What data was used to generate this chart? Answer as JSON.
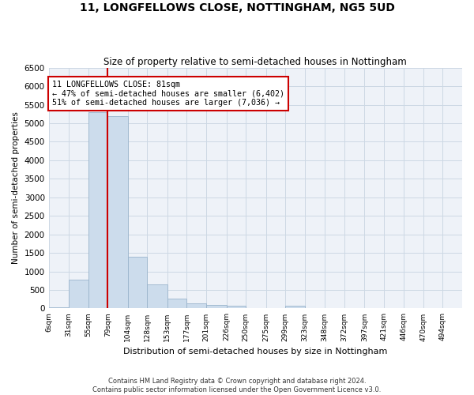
{
  "title": "11, LONGFELLOWS CLOSE, NOTTINGHAM, NG5 5UD",
  "subtitle": "Size of property relative to semi-detached houses in Nottingham",
  "xlabel": "Distribution of semi-detached houses by size in Nottingham",
  "ylabel": "Number of semi-detached properties",
  "footer_line1": "Contains HM Land Registry data © Crown copyright and database right 2024.",
  "footer_line2": "Contains public sector information licensed under the Open Government Licence v3.0.",
  "annotation_title": "11 LONGFELLOWS CLOSE: 81sqm",
  "annotation_line1": "← 47% of semi-detached houses are smaller (6,402)",
  "annotation_line2": "51% of semi-detached houses are larger (7,036) →",
  "categories": [
    "6sqm",
    "31sqm",
    "55sqm",
    "79sqm",
    "104sqm",
    "128sqm",
    "153sqm",
    "177sqm",
    "201sqm",
    "226sqm",
    "250sqm",
    "275sqm",
    "299sqm",
    "323sqm",
    "348sqm",
    "372sqm",
    "397sqm",
    "421sqm",
    "446sqm",
    "470sqm",
    "494sqm"
  ],
  "values": [
    30,
    780,
    5300,
    5200,
    1400,
    640,
    260,
    130,
    85,
    65,
    0,
    0,
    65,
    0,
    0,
    0,
    0,
    0,
    0,
    0,
    0
  ],
  "bin_edges": [
    6,
    31,
    55,
    79,
    104,
    128,
    153,
    177,
    201,
    226,
    250,
    275,
    299,
    323,
    348,
    372,
    397,
    421,
    446,
    470,
    494,
    518
  ],
  "bar_color": "#ccdcec",
  "bar_edge_color": "#9ab4cc",
  "vline_x": 79,
  "vline_color": "#cc0000",
  "annotation_box_color": "#cc0000",
  "grid_color": "#ccd8e4",
  "background_color": "#eef2f8",
  "ylim": [
    0,
    6500
  ],
  "yticks": [
    0,
    500,
    1000,
    1500,
    2000,
    2500,
    3000,
    3500,
    4000,
    4500,
    5000,
    5500,
    6000,
    6500
  ]
}
